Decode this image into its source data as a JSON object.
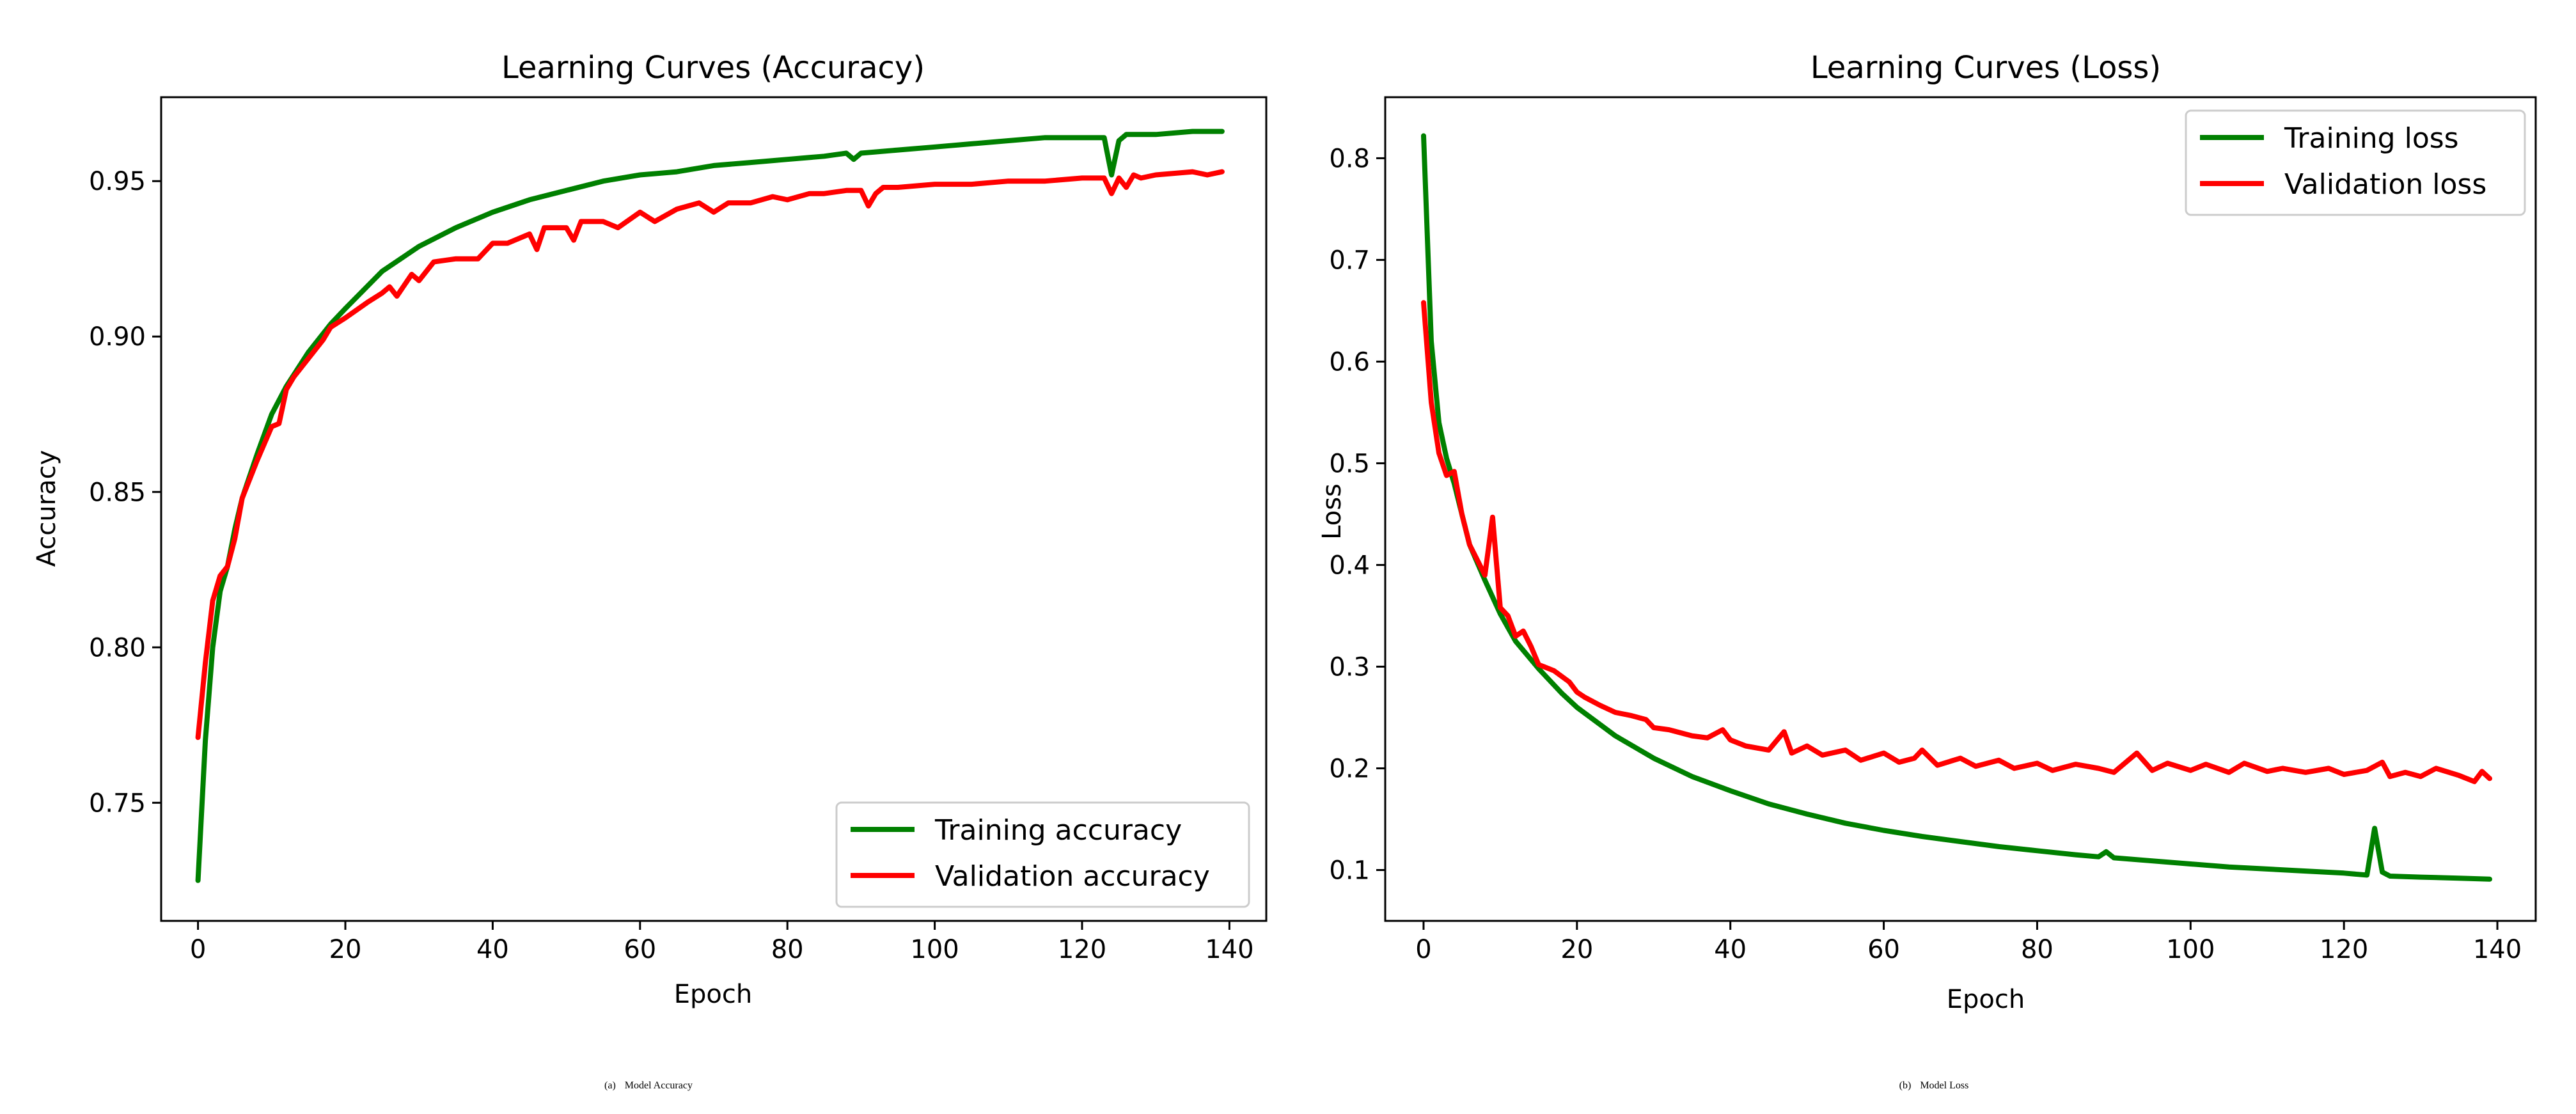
{
  "chart_data": [
    {
      "type": "line",
      "title": "Learning Curves (Accuracy)",
      "xlabel": "Epoch",
      "ylabel": "Accuracy",
      "xlim": [
        -5,
        145
      ],
      "ylim": [
        0.712,
        0.977
      ],
      "xticks": [
        0,
        20,
        40,
        60,
        80,
        100,
        120,
        140
      ],
      "yticks": [
        0.75,
        0.8,
        0.85,
        0.9,
        0.95
      ],
      "ytick_labels": [
        "0.75",
        "0.80",
        "0.85",
        "0.90",
        "0.95"
      ],
      "legend_position": "lower right",
      "caption_letter": "(a)",
      "caption_text": "Model Accuracy",
      "series": [
        {
          "name": "Training accuracy",
          "color": "#008000",
          "x": [
            0,
            1,
            2,
            3,
            4,
            5,
            6,
            8,
            10,
            12,
            15,
            18,
            20,
            25,
            30,
            35,
            40,
            45,
            50,
            55,
            60,
            65,
            70,
            75,
            80,
            85,
            88,
            89,
            90,
            95,
            100,
            105,
            110,
            115,
            120,
            122,
            123,
            124,
            125,
            126,
            130,
            135,
            139
          ],
          "y": [
            0.725,
            0.77,
            0.8,
            0.818,
            0.826,
            0.838,
            0.848,
            0.862,
            0.875,
            0.884,
            0.895,
            0.904,
            0.909,
            0.921,
            0.929,
            0.935,
            0.94,
            0.944,
            0.947,
            0.95,
            0.952,
            0.953,
            0.955,
            0.956,
            0.957,
            0.958,
            0.959,
            0.957,
            0.959,
            0.96,
            0.961,
            0.962,
            0.963,
            0.964,
            0.964,
            0.964,
            0.964,
            0.952,
            0.963,
            0.965,
            0.965,
            0.966,
            0.966
          ]
        },
        {
          "name": "Validation accuracy",
          "color": "#ff0000",
          "x": [
            0,
            1,
            2,
            3,
            4,
            5,
            6,
            8,
            10,
            11,
            12,
            13,
            15,
            17,
            18,
            20,
            23,
            25,
            26,
            27,
            29,
            30,
            32,
            35,
            38,
            40,
            42,
            45,
            46,
            47,
            50,
            51,
            52,
            55,
            57,
            60,
            62,
            65,
            68,
            70,
            72,
            75,
            78,
            80,
            83,
            85,
            88,
            90,
            91,
            92,
            93,
            95,
            100,
            105,
            110,
            115,
            120,
            123,
            124,
            125,
            126,
            127,
            128,
            130,
            135,
            137,
            139
          ],
          "y": [
            0.771,
            0.795,
            0.815,
            0.823,
            0.826,
            0.835,
            0.848,
            0.86,
            0.871,
            0.872,
            0.883,
            0.887,
            0.893,
            0.899,
            0.903,
            0.906,
            0.911,
            0.914,
            0.916,
            0.913,
            0.92,
            0.918,
            0.924,
            0.925,
            0.925,
            0.93,
            0.93,
            0.933,
            0.928,
            0.935,
            0.935,
            0.931,
            0.937,
            0.937,
            0.935,
            0.94,
            0.937,
            0.941,
            0.943,
            0.94,
            0.943,
            0.943,
            0.945,
            0.944,
            0.946,
            0.946,
            0.947,
            0.947,
            0.942,
            0.946,
            0.948,
            0.948,
            0.949,
            0.949,
            0.95,
            0.95,
            0.951,
            0.951,
            0.946,
            0.951,
            0.948,
            0.952,
            0.951,
            0.952,
            0.953,
            0.952,
            0.953
          ]
        }
      ]
    },
    {
      "type": "line",
      "title": "Learning Curves (Loss)",
      "xlabel": "Epoch",
      "ylabel": "Loss",
      "xlim": [
        -5,
        145
      ],
      "ylim": [
        0.05,
        0.86
      ],
      "xticks": [
        0,
        20,
        40,
        60,
        80,
        100,
        120,
        140
      ],
      "yticks": [
        0.1,
        0.2,
        0.3,
        0.4,
        0.5,
        0.6,
        0.7,
        0.8
      ],
      "ytick_labels": [
        "0.1",
        "0.2",
        "0.3",
        "0.4",
        "0.5",
        "0.6",
        "0.7",
        "0.8"
      ],
      "legend_position": "upper right",
      "caption_letter": "(b)",
      "caption_text": "Model Loss",
      "series": [
        {
          "name": "Training loss",
          "color": "#008000",
          "x": [
            0,
            1,
            2,
            3,
            4,
            5,
            6,
            8,
            10,
            12,
            15,
            18,
            20,
            25,
            30,
            35,
            40,
            45,
            50,
            55,
            60,
            65,
            70,
            75,
            80,
            85,
            88,
            89,
            90,
            95,
            100,
            105,
            110,
            115,
            120,
            123,
            124,
            125,
            126,
            130,
            135,
            139
          ],
          "y": [
            0.822,
            0.62,
            0.54,
            0.505,
            0.48,
            0.45,
            0.42,
            0.385,
            0.352,
            0.325,
            0.298,
            0.274,
            0.26,
            0.232,
            0.21,
            0.192,
            0.178,
            0.165,
            0.155,
            0.146,
            0.139,
            0.133,
            0.128,
            0.123,
            0.119,
            0.115,
            0.113,
            0.118,
            0.112,
            0.109,
            0.106,
            0.103,
            0.101,
            0.099,
            0.097,
            0.095,
            0.141,
            0.098,
            0.094,
            0.093,
            0.092,
            0.091
          ]
        },
        {
          "name": "Validation loss",
          "color": "#ff0000",
          "x": [
            0,
            1,
            2,
            3,
            4,
            5,
            6,
            7,
            8,
            9,
            10,
            11,
            12,
            13,
            14,
            15,
            17,
            19,
            20,
            21,
            23,
            25,
            27,
            29,
            30,
            32,
            35,
            37,
            39,
            40,
            42,
            45,
            47,
            48,
            50,
            52,
            55,
            57,
            60,
            62,
            64,
            65,
            67,
            70,
            72,
            75,
            77,
            80,
            82,
            85,
            88,
            90,
            93,
            95,
            97,
            100,
            102,
            105,
            107,
            110,
            112,
            115,
            118,
            120,
            123,
            125,
            126,
            128,
            130,
            132,
            135,
            137,
            138,
            139
          ],
          "y": [
            0.658,
            0.56,
            0.51,
            0.488,
            0.492,
            0.45,
            0.42,
            0.405,
            0.39,
            0.447,
            0.358,
            0.35,
            0.33,
            0.335,
            0.32,
            0.302,
            0.296,
            0.285,
            0.275,
            0.27,
            0.262,
            0.255,
            0.252,
            0.248,
            0.24,
            0.238,
            0.232,
            0.23,
            0.238,
            0.228,
            0.222,
            0.218,
            0.236,
            0.215,
            0.222,
            0.213,
            0.218,
            0.208,
            0.215,
            0.206,
            0.21,
            0.218,
            0.203,
            0.21,
            0.202,
            0.208,
            0.2,
            0.205,
            0.198,
            0.204,
            0.2,
            0.196,
            0.215,
            0.198,
            0.205,
            0.198,
            0.204,
            0.196,
            0.205,
            0.197,
            0.2,
            0.196,
            0.2,
            0.194,
            0.198,
            0.206,
            0.192,
            0.196,
            0.192,
            0.2,
            0.193,
            0.187,
            0.197,
            0.19
          ]
        }
      ]
    }
  ]
}
